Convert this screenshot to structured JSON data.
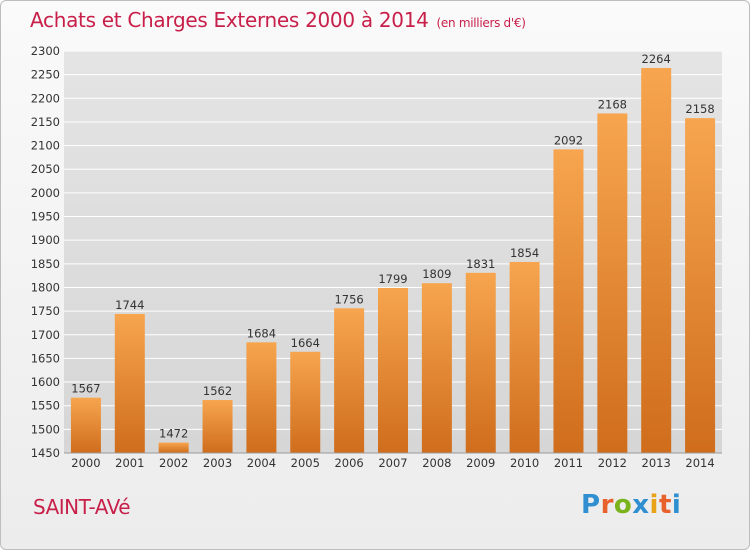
{
  "header": {
    "title": "Achats et Charges Externes 2000 à 2014",
    "unit": "(en milliers d'€)"
  },
  "footer": {
    "city": "SAINT-AVé",
    "logo": "Proxiti"
  },
  "colors": {
    "title": "#c8204a",
    "bar_light": "#f7a54f",
    "bar_dark": "#cf6d1c",
    "grid": "#ffffff",
    "axis_text": "#333333",
    "logo_letters": [
      "#2f8fd1",
      "#e8612c",
      "#7ab31c",
      "#2f8fd1",
      "#e8a317",
      "#e8612c",
      "#2f8fd1"
    ]
  },
  "chart_data": {
    "type": "bar",
    "title": "Achats et Charges Externes 2000 à 2014",
    "subtitle": "(en milliers d'€)",
    "xlabel": "",
    "ylabel": "",
    "categories": [
      "2000",
      "2001",
      "2002",
      "2003",
      "2004",
      "2005",
      "2006",
      "2007",
      "2008",
      "2009",
      "2010",
      "2011",
      "2012",
      "2013",
      "2014"
    ],
    "values": [
      1567,
      1744,
      1472,
      1562,
      1684,
      1664,
      1756,
      1799,
      1809,
      1831,
      1854,
      2092,
      2168,
      2264,
      2158
    ],
    "ylim": [
      1450,
      2300
    ],
    "yticks": [
      1450,
      1500,
      1550,
      1600,
      1650,
      1700,
      1750,
      1800,
      1850,
      1900,
      1950,
      2000,
      2050,
      2100,
      2150,
      2200,
      2250,
      2300
    ],
    "grid": true,
    "data_labels": true,
    "legend": "none"
  }
}
